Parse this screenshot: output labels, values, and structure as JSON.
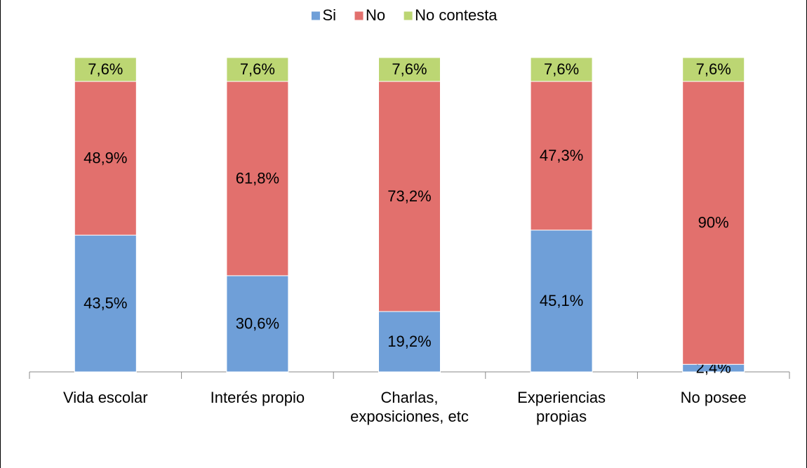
{
  "chart_data": {
    "type": "stacked_bar",
    "categories": [
      "Vida escolar",
      "Interés propio",
      "Charlas, exposiciones, etc",
      "Experiencias propias",
      "No posee"
    ],
    "ylim": [
      0,
      100
    ],
    "legend": "top",
    "series": [
      {
        "name": "Si",
        "color": "#6f9fd8",
        "values": [
          43.5,
          30.6,
          19.2,
          45.1,
          2.4
        ],
        "value_labels": [
          "43,5%",
          "30,6%",
          "19,2%",
          "45,1%",
          "2,4%"
        ]
      },
      {
        "name": "No",
        "color": "#e2706d",
        "values": [
          48.9,
          61.8,
          73.2,
          47.3,
          90
        ],
        "value_labels": [
          "48,9%",
          "61,8%",
          "73,2%",
          "47,3%",
          "90%"
        ]
      },
      {
        "name": "No contesta",
        "color": "#bcd673",
        "values": [
          7.6,
          7.6,
          7.6,
          7.6,
          7.6
        ],
        "value_labels": [
          "7,6%",
          "7,6%",
          "7,6%",
          "7,6%",
          "7,6%"
        ]
      }
    ]
  }
}
